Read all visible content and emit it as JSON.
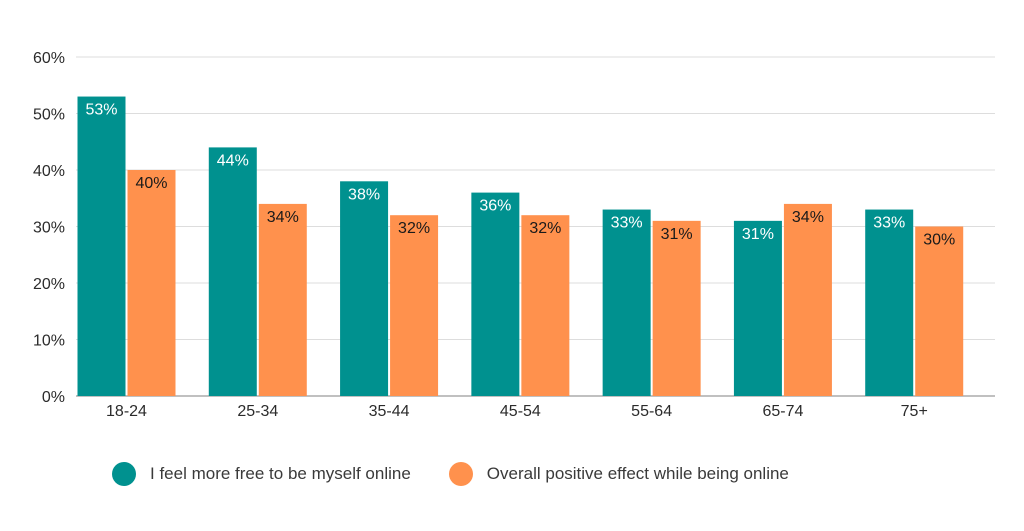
{
  "chart_data": {
    "type": "bar",
    "categories": [
      "18-24",
      "25-34",
      "35-44",
      "45-54",
      "55-64",
      "65-74",
      "75+"
    ],
    "series": [
      {
        "name": "I feel more free to be myself online",
        "color": "#00918f",
        "label_color": "#ffffff",
        "values": [
          53,
          44,
          38,
          36,
          33,
          31,
          33
        ]
      },
      {
        "name": "Overall positive effect while being online",
        "color": "#ff914d",
        "label_color": "#1a1a1a",
        "values": [
          40,
          34,
          32,
          32,
          31,
          34,
          30
        ]
      }
    ],
    "y_ticks": [
      "0%",
      "10%",
      "20%",
      "30%",
      "40%",
      "50%",
      "60%"
    ],
    "ylim": [
      0,
      60
    ],
    "value_suffix": "%",
    "grid": true,
    "legend_position": "bottom",
    "title": "",
    "xlabel": "",
    "ylabel": ""
  }
}
